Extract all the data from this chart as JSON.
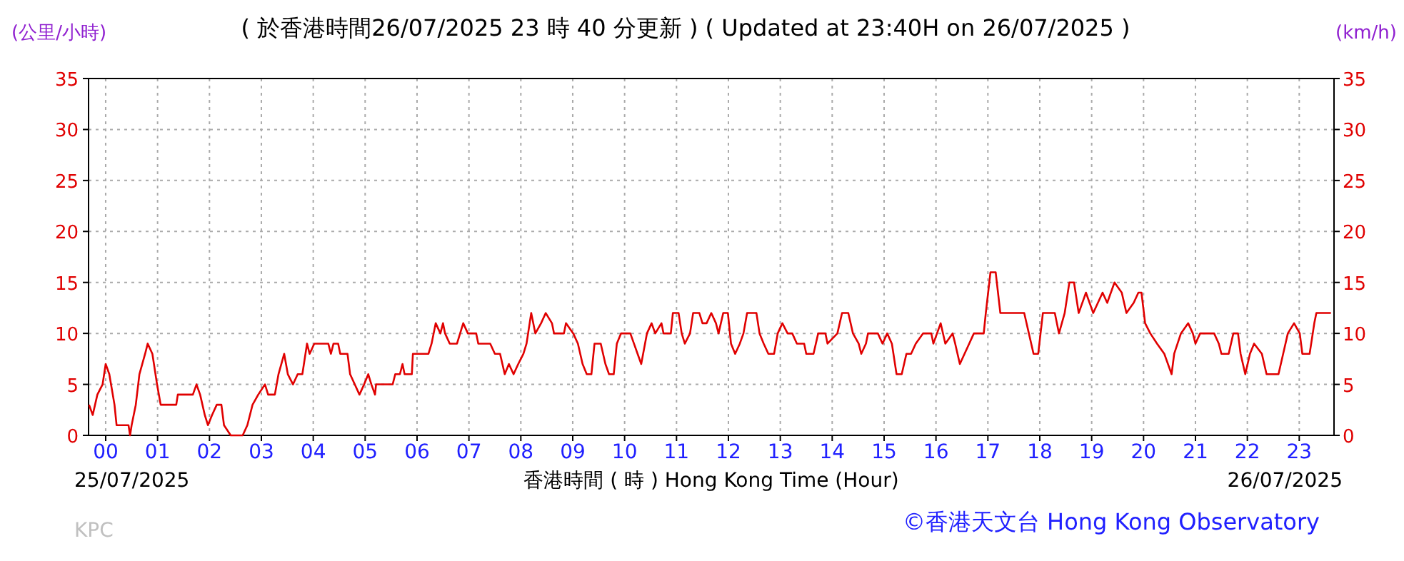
{
  "chart_data": {
    "type": "line",
    "title": "( 於香港時間26/07/2025 23 時 40 分更新 ) ( Updated at 23:40H on 26/07/2025 )",
    "ylabel": "(公里/小時)",
    "y2label": "(km/h)",
    "xlabel": "香港時間 ( 時 ) Hong Kong Time (Hour)",
    "annotations": [
      "25/07/2025",
      "26/07/2025",
      "KPC",
      "©香港天文台 Hong Kong Observatory"
    ],
    "xlim": [
      -0.33,
      23.67
    ],
    "xticks": [
      {
        "value": 0,
        "label": "00"
      },
      {
        "value": 1,
        "label": "01"
      },
      {
        "value": 2,
        "label": "02"
      },
      {
        "value": 3,
        "label": "03"
      },
      {
        "value": 4,
        "label": "04"
      },
      {
        "value": 5,
        "label": "05"
      },
      {
        "value": 6,
        "label": "06"
      },
      {
        "value": 7,
        "label": "07"
      },
      {
        "value": 8,
        "label": "08"
      },
      {
        "value": 9,
        "label": "09"
      },
      {
        "value": 10,
        "label": "10"
      },
      {
        "value": 11,
        "label": "11"
      },
      {
        "value": 12,
        "label": "12"
      },
      {
        "value": 13,
        "label": "13"
      },
      {
        "value": 14,
        "label": "14"
      },
      {
        "value": 15,
        "label": "15"
      },
      {
        "value": 16,
        "label": "16"
      },
      {
        "value": 17,
        "label": "17"
      },
      {
        "value": 18,
        "label": "18"
      },
      {
        "value": 19,
        "label": "19"
      },
      {
        "value": 20,
        "label": "20"
      },
      {
        "value": 21,
        "label": "21"
      },
      {
        "value": 22,
        "label": "22"
      },
      {
        "value": 23,
        "label": "23"
      }
    ],
    "ylim": [
      0,
      35
    ],
    "yticks": [
      0,
      5,
      10,
      15,
      20,
      25,
      30,
      35
    ],
    "y2lim": [
      0,
      35
    ],
    "y2ticks": [
      0,
      5,
      10,
      15,
      20,
      25,
      30,
      35
    ],
    "grid": true,
    "marker": "none",
    "line_style": "solid",
    "series": [
      {
        "color": "#e00000",
        "x": [
          -0.32,
          -0.25,
          -0.16,
          -0.06,
          0,
          0.07,
          0.17,
          0.21,
          0.44,
          0.47,
          0.5,
          0.58,
          0.65,
          0.76,
          0.81,
          0.9,
          0.99,
          1.06,
          1.36,
          1.39,
          1.68,
          1.75,
          1.82,
          1.91,
          1.97,
          2.05,
          2.14,
          2.23,
          2.28,
          2.41,
          2.64,
          2.73,
          2.83,
          2.94,
          3.07,
          3.13,
          3.26,
          3.33,
          3.44,
          3.51,
          3.61,
          3.7,
          3.79,
          3.88,
          3.93,
          4.02,
          4.29,
          4.34,
          4.39,
          4.48,
          4.52,
          4.66,
          4.71,
          4.8,
          4.89,
          4.98,
          5.06,
          5.12,
          5.19,
          5.21,
          5.53,
          5.58,
          5.67,
          5.72,
          5.76,
          5.9,
          5.92,
          6.22,
          6.28,
          6.36,
          6.45,
          6.5,
          6.54,
          6.63,
          6.77,
          6.83,
          6.89,
          6.98,
          7.14,
          7.18,
          7.41,
          7.5,
          7.6,
          7.69,
          7.77,
          7.86,
          7.95,
          8.05,
          8.11,
          8.17,
          8.2,
          8.28,
          8.39,
          8.48,
          8.6,
          8.64,
          8.83,
          8.87,
          9.01,
          9.1,
          9.19,
          9.27,
          9.36,
          9.42,
          9.54,
          9.63,
          9.7,
          9.79,
          9.85,
          9.93,
          10.11,
          10.18,
          10.25,
          10.32,
          10.43,
          10.52,
          10.59,
          10.71,
          10.75,
          10.89,
          10.93,
          11.04,
          11.1,
          11.16,
          11.26,
          11.32,
          11.44,
          11.5,
          11.58,
          11.67,
          11.76,
          11.81,
          11.9,
          11.99,
          12.05,
          12.13,
          12.22,
          12.29,
          12.36,
          12.54,
          12.6,
          12.68,
          12.77,
          12.88,
          12.95,
          13.04,
          13.14,
          13.23,
          13.32,
          13.46,
          13.5,
          13.64,
          13.73,
          13.87,
          13.91,
          14.1,
          14.19,
          14.31,
          14.4,
          14.51,
          14.56,
          14.65,
          14.69,
          14.88,
          14.97,
          15.06,
          15.15,
          15.24,
          15.34,
          15.43,
          15.52,
          15.61,
          15.75,
          15.91,
          15.95,
          16.09,
          16.18,
          16.32,
          16.37,
          16.46,
          16.55,
          16.64,
          16.73,
          16.92,
          16.96,
          17.05,
          17.15,
          17.24,
          17.7,
          17.79,
          17.88,
          17.97,
          18.06,
          18.29,
          18.37,
          18.48,
          18.57,
          18.66,
          18.75,
          18.89,
          19.03,
          19.21,
          19.3,
          19.44,
          19.58,
          19.67,
          19.81,
          19.9,
          19.96,
          20.03,
          20.13,
          20.26,
          20.4,
          20.54,
          20.59,
          20.72,
          20.86,
          20.95,
          21.0,
          21.09,
          21.36,
          21.45,
          21.5,
          21.64,
          21.73,
          21.82,
          21.87,
          21.96,
          22.05,
          22.13,
          22.28,
          22.37,
          22.6,
          22.69,
          22.78,
          22.9,
          23.01,
          23.06,
          23.2,
          23.29,
          23.33,
          23.61
        ],
        "values": [
          3,
          2,
          4,
          5,
          7,
          6,
          3,
          1,
          1,
          0,
          1,
          3,
          6,
          8,
          9,
          8,
          5,
          3,
          3,
          4,
          4,
          5,
          4,
          2,
          1,
          2,
          3,
          3,
          1,
          0,
          0,
          1,
          3,
          4,
          5,
          4,
          4,
          6,
          8,
          6,
          5,
          6,
          6,
          9,
          8,
          9,
          9,
          8,
          9,
          9,
          8,
          8,
          6,
          5,
          4,
          5,
          6,
          5,
          4,
          5,
          5,
          6,
          6,
          7,
          6,
          6,
          8,
          8,
          9,
          11,
          10,
          11,
          10,
          9,
          9,
          10,
          11,
          10,
          10,
          9,
          9,
          8,
          8,
          6,
          7,
          6,
          7,
          8,
          9,
          11,
          12,
          10,
          11,
          12,
          11,
          10,
          10,
          11,
          10,
          9,
          7,
          6,
          6,
          9,
          9,
          7,
          6,
          6,
          9,
          10,
          10,
          9,
          8,
          7,
          10,
          11,
          10,
          11,
          10,
          10,
          12,
          12,
          10,
          9,
          10,
          12,
          12,
          11,
          11,
          12,
          11,
          10,
          12,
          12,
          9,
          8,
          9,
          10,
          12,
          12,
          10,
          9,
          8,
          8,
          10,
          11,
          10,
          10,
          9,
          9,
          8,
          8,
          10,
          10,
          9,
          10,
          12,
          12,
          10,
          9,
          8,
          9,
          10,
          10,
          9,
          10,
          9,
          6,
          6,
          8,
          8,
          9,
          10,
          10,
          9,
          11,
          9,
          10,
          9,
          7,
          8,
          9,
          10,
          10,
          12,
          16,
          16,
          12,
          12,
          10,
          8,
          8,
          12,
          12,
          10,
          12,
          15,
          15,
          12,
          14,
          12,
          14,
          13,
          15,
          14,
          12,
          13,
          14,
          14,
          11,
          10,
          9,
          8,
          6,
          8,
          10,
          11,
          10,
          9,
          10,
          10,
          9,
          8,
          8,
          10,
          10,
          8,
          6,
          8,
          9,
          8,
          6,
          6,
          8,
          10,
          11,
          10,
          8,
          8,
          11,
          12,
          12
        ]
      }
    ]
  }
}
